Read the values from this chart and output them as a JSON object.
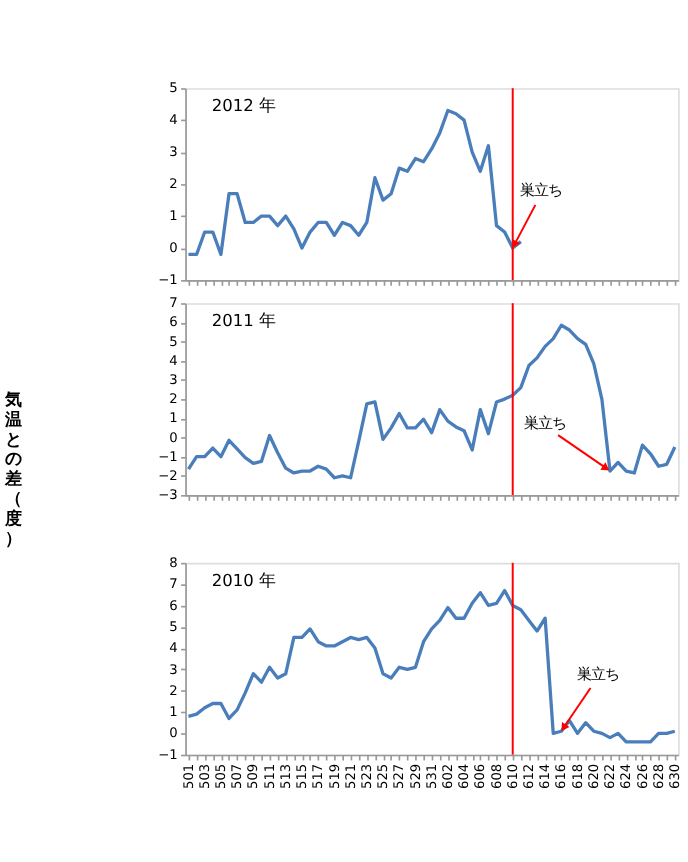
{
  "chart_data": [
    {
      "type": "line",
      "title": "2012 年",
      "categories": [
        "501",
        null,
        "503",
        null,
        "505",
        null,
        "507",
        null,
        "509",
        null,
        "511",
        null,
        "513",
        null,
        "515",
        null,
        "517",
        null,
        "519",
        null,
        "521",
        null,
        "523",
        null,
        "525",
        null,
        "527",
        null,
        "529",
        null,
        "531",
        null,
        "602",
        null,
        "604",
        null,
        "606",
        null,
        "608",
        null,
        "610",
        null,
        "612",
        null,
        "614",
        null,
        "616",
        null,
        "618",
        null,
        "620",
        null,
        "622",
        null,
        "624",
        null,
        "626",
        null,
        "628",
        null,
        "630"
      ],
      "series": [
        {
          "color": "#4a7ebb",
          "values": [
            -0.2,
            -0.2,
            0.5,
            0.5,
            -0.2,
            1.7,
            1.7,
            0.8,
            0.8,
            1.0,
            1.0,
            0.7,
            1.0,
            0.6,
            0.0,
            0.5,
            0.8,
            0.8,
            0.4,
            0.8,
            0.7,
            0.4,
            0.8,
            2.2,
            1.5,
            1.7,
            2.5,
            2.4,
            2.8,
            2.7,
            3.1,
            3.6,
            4.3,
            4.2,
            4.0,
            3.0,
            2.4,
            3.2,
            0.7,
            0.5,
            0.0,
            0.2,
            null,
            null,
            null,
            null,
            null,
            null,
            null,
            null,
            null,
            null,
            null,
            null,
            null,
            null,
            null,
            null,
            null,
            null,
            null
          ]
        }
      ],
      "ylim": [
        -1,
        5
      ],
      "yticks": [
        -1,
        0,
        1,
        2,
        3,
        4,
        5
      ],
      "grid": false,
      "tick_labels": "y",
      "marker": "none",
      "line_style": "solid",
      "ref_lines": [
        {
          "axis": "x",
          "value": "610",
          "color": "#ff0000"
        }
      ],
      "annotations": [
        {
          "text": "巣立ち",
          "x": "610",
          "y": 0.0
        }
      ]
    },
    {
      "type": "line",
      "title": "2011 年",
      "ylabel": "気温との差（度）",
      "categories": [
        "501",
        null,
        "503",
        null,
        "505",
        null,
        "507",
        null,
        "509",
        null,
        "511",
        null,
        "513",
        null,
        "515",
        null,
        "517",
        null,
        "519",
        null,
        "521",
        null,
        "523",
        null,
        "525",
        null,
        "527",
        null,
        "529",
        null,
        "531",
        null,
        "602",
        null,
        "604",
        null,
        "606",
        null,
        "608",
        null,
        "610",
        null,
        "612",
        null,
        "614",
        null,
        "616",
        null,
        "618",
        null,
        "620",
        null,
        "622",
        null,
        "624",
        null,
        "626",
        null,
        "628",
        null,
        "630"
      ],
      "series": [
        {
          "color": "#4a7ebb",
          "values": [
            -1.65,
            -1.0,
            -1.0,
            -0.55,
            -1.0,
            -0.15,
            -0.6,
            -1.05,
            -1.35,
            -1.25,
            0.1,
            -0.8,
            -1.6,
            -1.85,
            -1.75,
            -1.75,
            -1.5,
            -1.65,
            -2.1,
            -2.0,
            -2.1,
            -0.2,
            1.75,
            1.85,
            -0.1,
            0.5,
            1.25,
            0.5,
            0.5,
            0.95,
            0.25,
            1.45,
            0.85,
            0.55,
            0.35,
            -0.65,
            1.45,
            0.2,
            1.85,
            2.0,
            2.2,
            2.6,
            3.75,
            4.15,
            4.75,
            5.15,
            5.85,
            5.6,
            5.15,
            4.85,
            3.85,
            2.0,
            -1.75,
            -1.3,
            -1.75,
            -1.85,
            -0.4,
            -0.85,
            -1.5,
            -1.4,
            -0.5
          ]
        }
      ],
      "ylim": [
        -3,
        7
      ],
      "yticks": [
        -3,
        -2,
        -1,
        0,
        1,
        2,
        3,
        4,
        5,
        6,
        7
      ],
      "grid": false,
      "tick_labels": "y",
      "marker": "none",
      "line_style": "solid",
      "ref_lines": [
        {
          "axis": "x",
          "value": "610",
          "color": "#ff0000"
        }
      ],
      "annotations": [
        {
          "text": "巣立ち",
          "x": "622",
          "y": -1.75
        }
      ]
    },
    {
      "type": "line",
      "title": "2010 年",
      "categories": [
        "501",
        null,
        "503",
        null,
        "505",
        null,
        "507",
        null,
        "509",
        null,
        "511",
        null,
        "513",
        null,
        "515",
        null,
        "517",
        null,
        "519",
        null,
        "521",
        null,
        "523",
        null,
        "525",
        null,
        "527",
        null,
        "529",
        null,
        "531",
        null,
        "602",
        null,
        "604",
        null,
        "606",
        null,
        "608",
        null,
        "610",
        null,
        "612",
        null,
        "614",
        null,
        "616",
        null,
        "618",
        null,
        "620",
        null,
        "622",
        null,
        "624",
        null,
        "626",
        null,
        "628",
        null,
        "630"
      ],
      "series": [
        {
          "color": "#4a7ebb",
          "values": [
            0.8,
            0.9,
            1.2,
            1.4,
            1.4,
            0.7,
            1.1,
            1.9,
            2.8,
            2.4,
            3.1,
            2.6,
            2.8,
            4.5,
            4.5,
            4.9,
            4.3,
            4.1,
            4.1,
            4.3,
            4.5,
            4.4,
            4.5,
            4.0,
            2.8,
            2.6,
            3.1,
            3.0,
            3.1,
            4.3,
            4.9,
            5.3,
            5.9,
            5.4,
            5.4,
            6.1,
            6.6,
            6.0,
            6.1,
            6.7,
            6.0,
            5.8,
            5.3,
            4.8,
            5.4,
            0.0,
            0.1,
            0.6,
            0.0,
            0.5,
            0.1,
            0.0,
            -0.2,
            0.0,
            -0.4,
            -0.4,
            -0.4,
            -0.4,
            0.0,
            0.0,
            0.1
          ]
        }
      ],
      "ylim": [
        -1,
        8
      ],
      "yticks": [
        -1,
        0,
        1,
        2,
        3,
        4,
        5,
        6,
        7,
        8
      ],
      "grid": false,
      "marker": "none",
      "line_style": "solid",
      "ref_lines": [
        {
          "axis": "x",
          "value": "610",
          "color": "#ff0000"
        }
      ],
      "annotations": [
        {
          "text": "巣立ち",
          "x": "616",
          "y": 0.1
        }
      ]
    }
  ]
}
